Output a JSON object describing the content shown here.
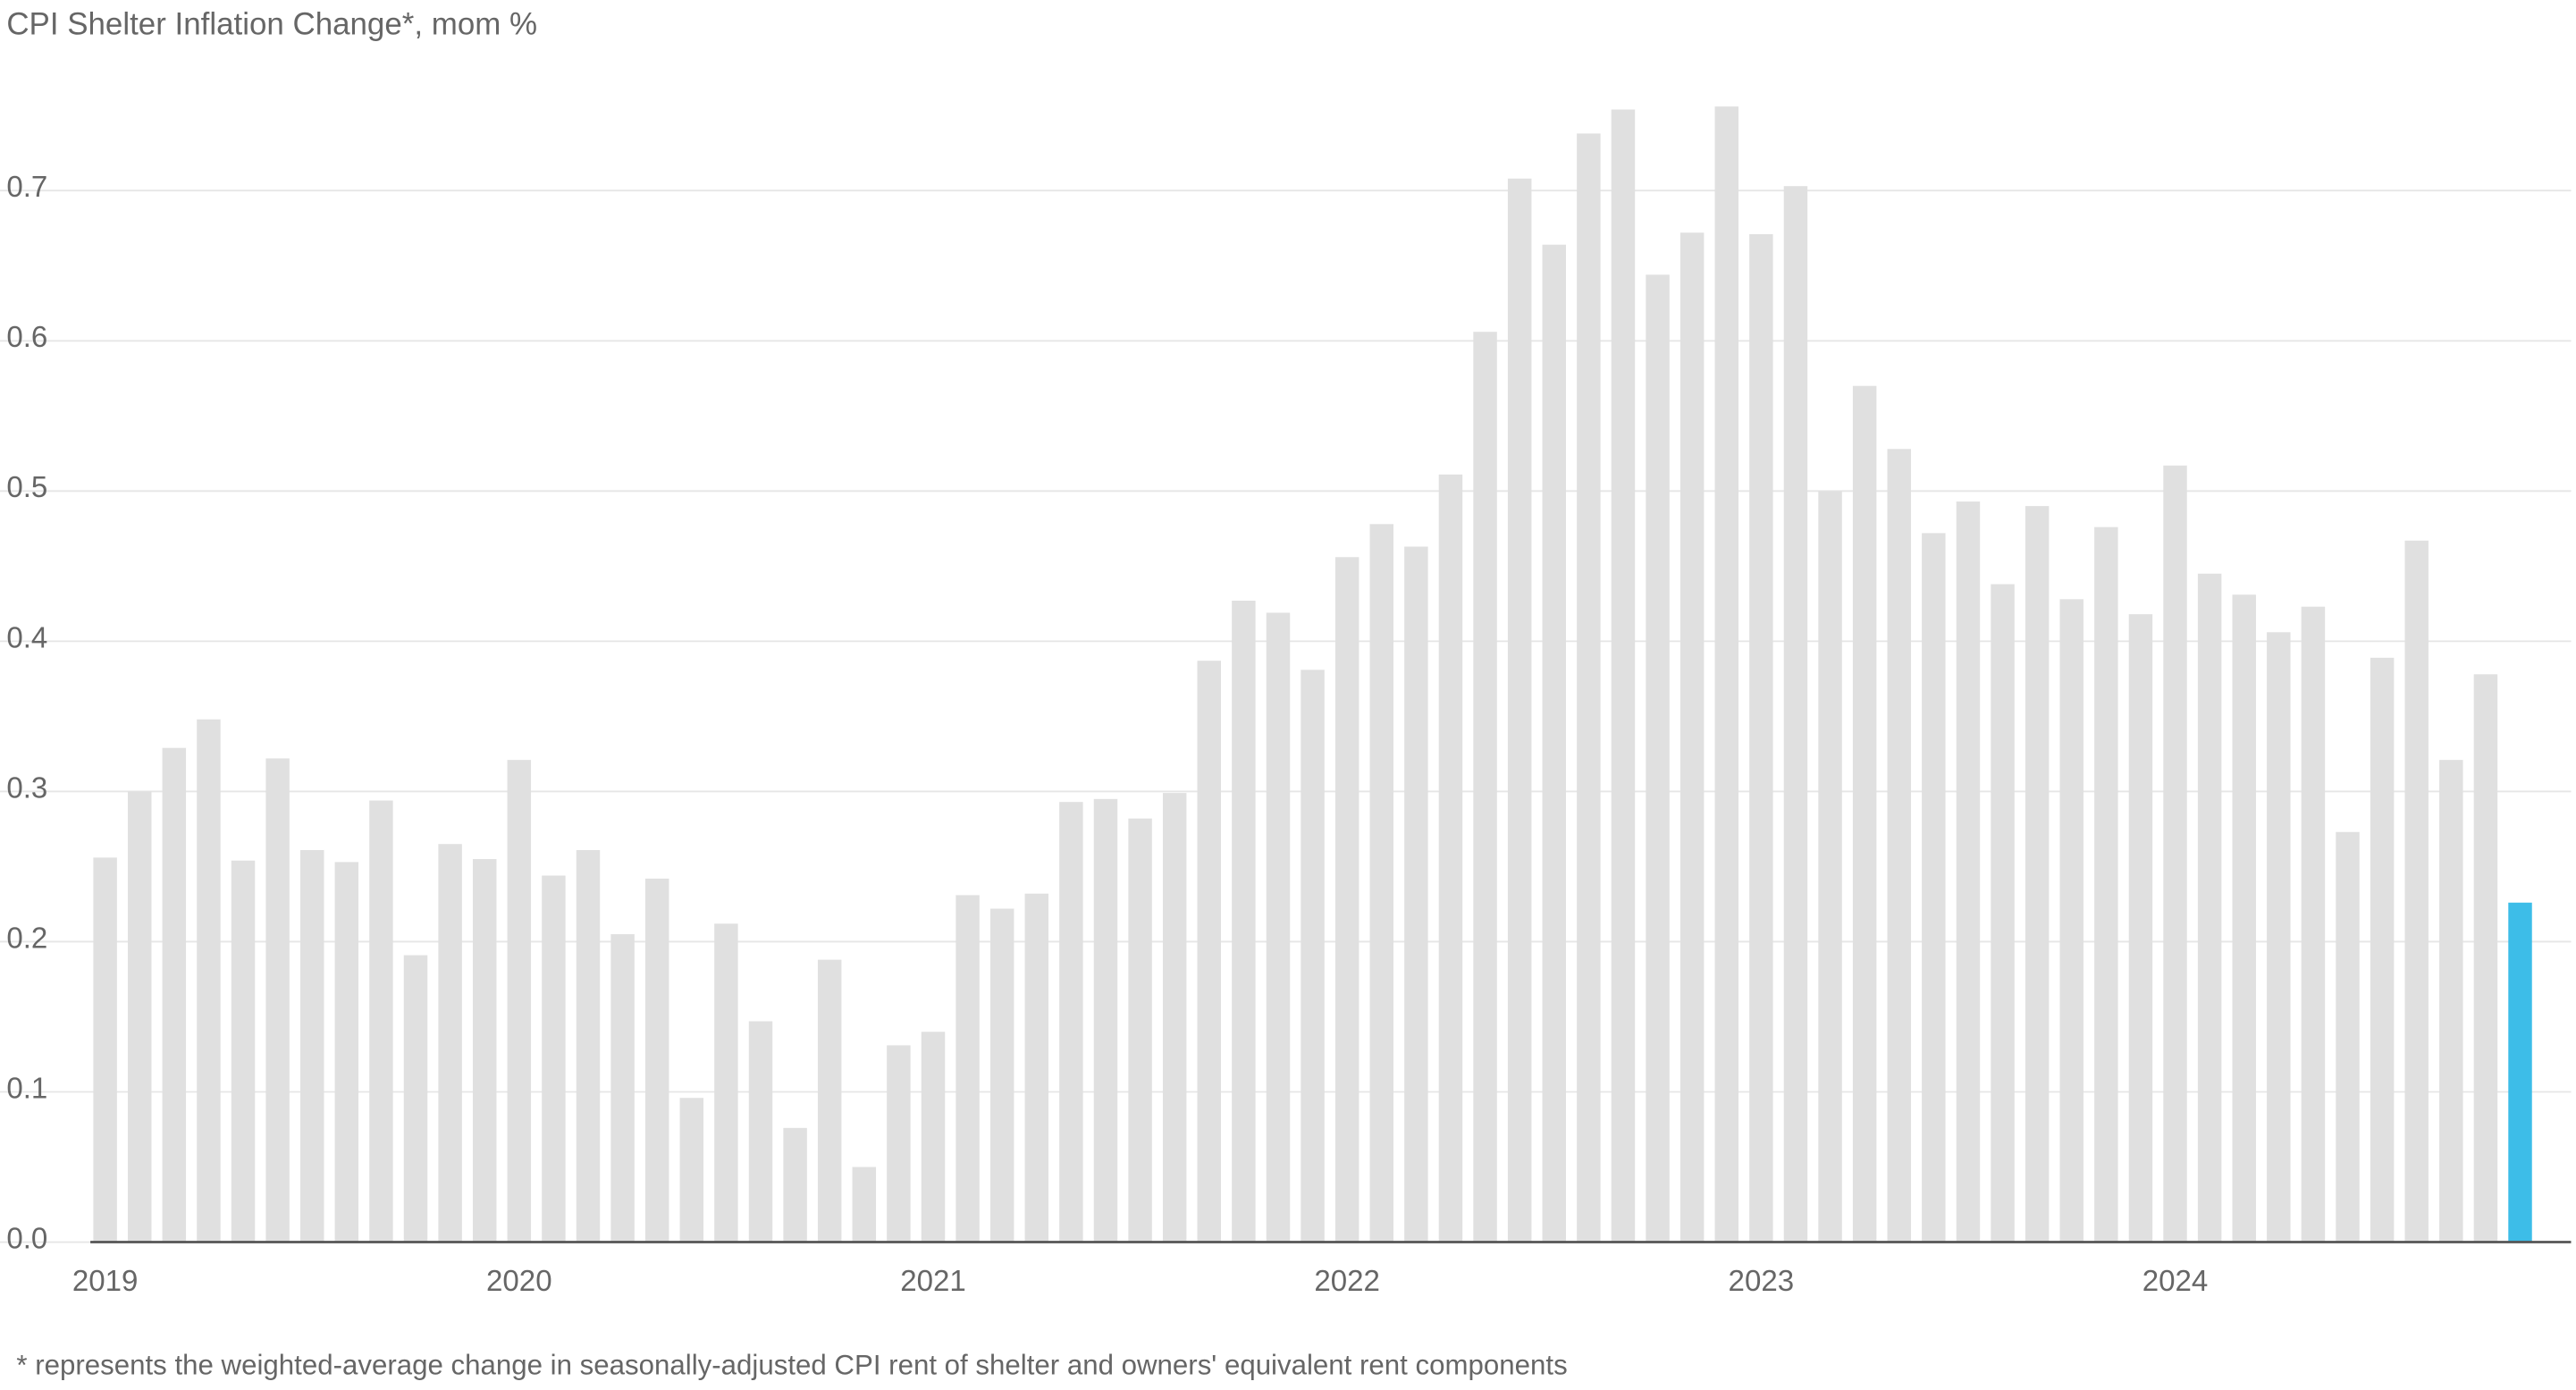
{
  "chart_data": {
    "type": "bar",
    "title": "CPI Shelter Inflation Change*, mom %",
    "footnote": "* represents the weighted-average change in seasonally-adjusted CPI   rent of shelter and owners' equivalent rent components",
    "categories": [
      "2019",
      null,
      null,
      null,
      null,
      null,
      null,
      null,
      null,
      null,
      null,
      null,
      "2020",
      null,
      null,
      null,
      null,
      null,
      null,
      null,
      null,
      null,
      null,
      null,
      "2021",
      null,
      null,
      null,
      null,
      null,
      null,
      null,
      null,
      null,
      null,
      null,
      "2022",
      null,
      null,
      null,
      null,
      null,
      null,
      null,
      null,
      null,
      null,
      null,
      "2023",
      null,
      null,
      null,
      null,
      null,
      null,
      null,
      null,
      null,
      null,
      null,
      "2024",
      null,
      null,
      null,
      null,
      null,
      null,
      null,
      null,
      null,
      null
    ],
    "values": [
      0.256,
      0.3,
      0.329,
      0.348,
      0.254,
      0.322,
      0.261,
      0.253,
      0.294,
      0.191,
      0.265,
      0.255,
      0.321,
      0.244,
      0.261,
      0.205,
      0.242,
      0.096,
      0.212,
      0.147,
      0.076,
      0.188,
      0.05,
      0.131,
      0.14,
      0.231,
      0.222,
      0.232,
      0.293,
      0.295,
      0.282,
      0.299,
      0.387,
      0.427,
      0.419,
      0.381,
      0.456,
      0.478,
      0.463,
      0.511,
      0.606,
      0.708,
      0.664,
      0.738,
      0.754,
      0.644,
      0.672,
      0.756,
      0.671,
      0.703,
      0.5,
      0.57,
      0.528,
      0.472,
      0.493,
      0.438,
      0.49,
      0.428,
      0.476,
      0.418,
      0.517,
      0.445,
      0.431,
      0.406,
      0.423,
      0.273,
      0.389,
      0.467,
      0.321,
      0.378,
      0.226
    ],
    "colors": [
      "#e0e0e0",
      "#e0e0e0",
      "#e0e0e0",
      "#e0e0e0",
      "#e0e0e0",
      "#e0e0e0",
      "#e0e0e0",
      "#e0e0e0",
      "#e0e0e0",
      "#e0e0e0",
      "#e0e0e0",
      "#e0e0e0",
      "#e0e0e0",
      "#e0e0e0",
      "#e0e0e0",
      "#e0e0e0",
      "#e0e0e0",
      "#e0e0e0",
      "#e0e0e0",
      "#e0e0e0",
      "#e0e0e0",
      "#e0e0e0",
      "#e0e0e0",
      "#e0e0e0",
      "#e0e0e0",
      "#e0e0e0",
      "#e0e0e0",
      "#e0e0e0",
      "#e0e0e0",
      "#e0e0e0",
      "#e0e0e0",
      "#e0e0e0",
      "#e0e0e0",
      "#e0e0e0",
      "#e0e0e0",
      "#e0e0e0",
      "#e0e0e0",
      "#e0e0e0",
      "#e0e0e0",
      "#e0e0e0",
      "#e0e0e0",
      "#e0e0e0",
      "#e0e0e0",
      "#e0e0e0",
      "#e0e0e0",
      "#e0e0e0",
      "#e0e0e0",
      "#e0e0e0",
      "#e0e0e0",
      "#e0e0e0",
      "#e0e0e0",
      "#e0e0e0",
      "#e0e0e0",
      "#e0e0e0",
      "#e0e0e0",
      "#e0e0e0",
      "#e0e0e0",
      "#e0e0e0",
      "#e0e0e0",
      "#e0e0e0",
      "#e0e0e0",
      "#e0e0e0",
      "#e0e0e0",
      "#e0e0e0",
      "#e0e0e0",
      "#e0e0e0",
      "#e0e0e0",
      "#e0e0e0",
      "#e0e0e0",
      "#e0e0e0",
      "#3dbde8"
    ],
    "ylim": [
      0,
      0.77
    ],
    "yticks": [
      {
        "value": 0,
        "label": "0.0"
      },
      0.1,
      0.2,
      0.3,
      0.4,
      0.5,
      0.6,
      0.7
    ],
    "grid": true
  }
}
